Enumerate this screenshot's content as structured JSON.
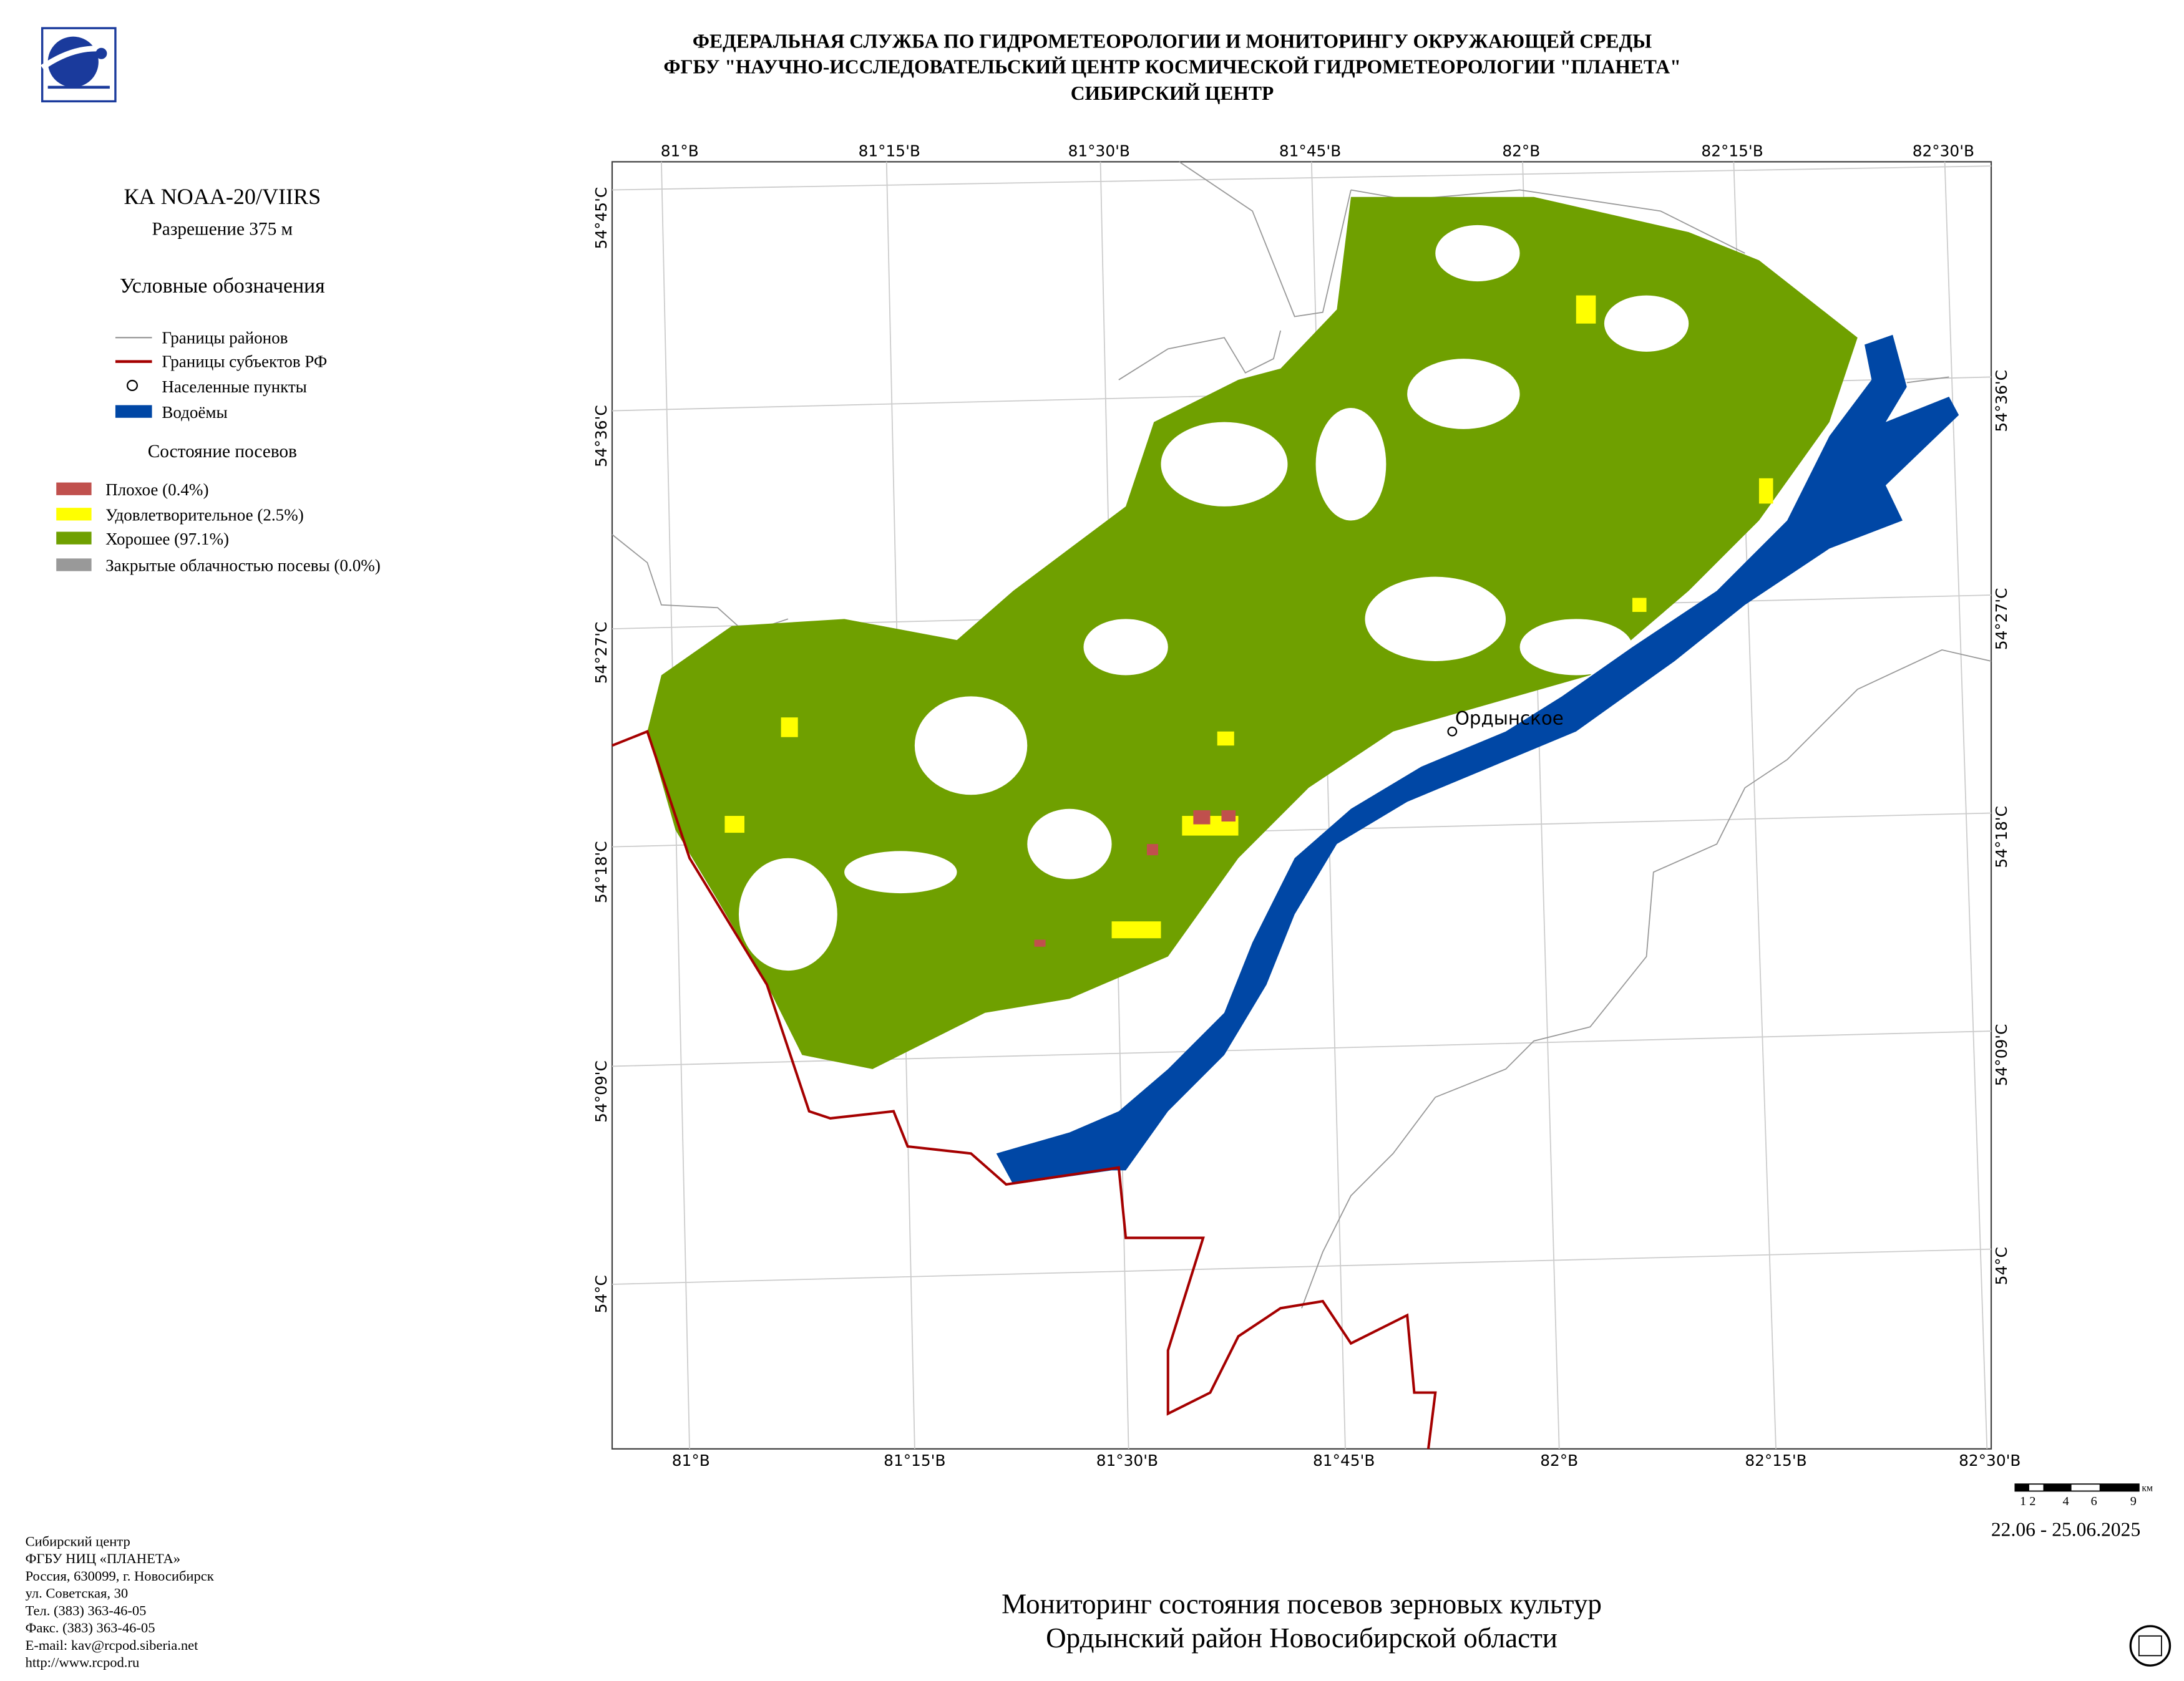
{
  "header": {
    "lines": [
      "ФЕДЕРАЛЬНАЯ СЛУЖБА ПО ГИДРОМЕТЕОРОЛОГИИ И МОНИТОРИНГУ ОКРУЖАЮЩЕЙ СРЕДЫ",
      "ФГБУ \"НАУЧНО-ИССЛЕДОВАТЕЛЬСКИЙ ЦЕНТР КОСМИЧЕСКОЙ ГИДРОМЕТЕОРОЛОГИИ \"ПЛАНЕТА\"",
      "СИБИРСКИЙ ЦЕНТР"
    ]
  },
  "sidebar": {
    "satellite": "КА NOAA-20/VIIRS",
    "resolution": "Разрешение 375 м",
    "legend_title": "Условные обозначения",
    "legend": [
      "Границы районов",
      "Границы субъектов РФ",
      "Населенные пункты",
      "Водоёмы"
    ],
    "crop_title": "Состояние посевов",
    "crop_legend": [
      "Плохое (0.4%)",
      "Удовлетворительное (2.5%)",
      "Хорошее (97.1%)",
      "Закрытые облачностью посевы (0.0%)"
    ]
  },
  "map": {
    "lon_labels_top": [
      "81°В",
      "81°15'В",
      "81°30'В",
      "81°45'В",
      "82°В",
      "82°15'В",
      "82°30'В"
    ],
    "lon_labels_bottom": [
      "81°В",
      "81°15'В",
      "81°30'В",
      "81°45'В",
      "82°В",
      "82°15'В",
      "82°30'В"
    ],
    "lat_labels_left": [
      "54°45'С",
      "54°36'С",
      "54°27'С",
      "54°18'С",
      "54°09'С",
      "54°С"
    ],
    "lat_labels_right": [
      "54°36'С",
      "54°27'С",
      "54°18'С",
      "54°09'С",
      "54°С"
    ],
    "settlement": "Ордынское",
    "scale_labels": [
      "1 2",
      "4",
      "6",
      "9"
    ],
    "scale_unit": "км",
    "date": "22.06 - 25.06.2025"
  },
  "footer": {
    "contacts": [
      "Сибирский центр",
      "ФГБУ НИЦ «ПЛАНЕТА»",
      "Россия, 630099, г. Новосибирск",
      "ул. Советская, 30",
      "Тел. (383) 363-46-05",
      "Факс. (383) 363-46-05",
      "E-mail: kav@rcpod.siberia.net",
      "http://www.rcpod.ru"
    ],
    "title": [
      "Мониторинг состояния посевов зерновых культур",
      "Ордынский район Новосибирской области"
    ]
  }
}
